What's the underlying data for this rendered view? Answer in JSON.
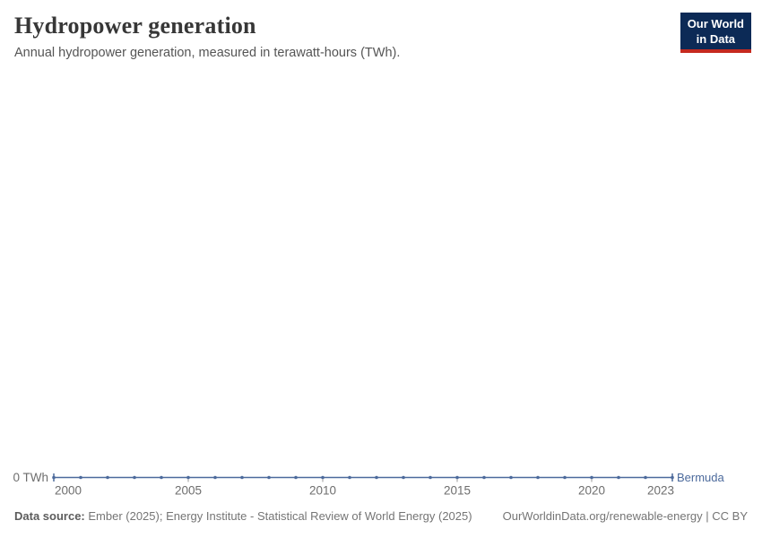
{
  "header": {
    "title": "Hydropower generation",
    "subtitle": "Annual hydropower generation, measured in terawatt-hours (TWh).",
    "logo": {
      "line1": "Our World",
      "line2": "in Data"
    }
  },
  "chart_data": {
    "type": "line",
    "title": "Hydropower generation",
    "subtitle": "Annual hydropower generation, measured in terawatt-hours (TWh).",
    "x": [
      2000,
      2001,
      2002,
      2003,
      2004,
      2005,
      2006,
      2007,
      2008,
      2009,
      2010,
      2011,
      2012,
      2013,
      2014,
      2015,
      2016,
      2017,
      2018,
      2019,
      2020,
      2021,
      2022,
      2023
    ],
    "series": [
      {
        "name": "Bermuda",
        "color": "#4c6a9c",
        "values": [
          0,
          0,
          0,
          0,
          0,
          0,
          0,
          0,
          0,
          0,
          0,
          0,
          0,
          0,
          0,
          0,
          0,
          0,
          0,
          0,
          0,
          0,
          0,
          0
        ]
      }
    ],
    "x_tick_labels": [
      "2000",
      "2005",
      "2010",
      "2015",
      "2020",
      "2023"
    ],
    "y_tick_labels": [
      "0 TWh"
    ],
    "xlabel": "",
    "ylabel": "",
    "xlim": [
      2000,
      2023
    ],
    "ylim": [
      0,
      0
    ],
    "grid": false,
    "legend_position": "right-of-line-end",
    "marker": "dot-every-year"
  },
  "footer": {
    "source_label": "Data source:",
    "source_text": " Ember (2025); Energy Institute - Statistical Review of World Energy (2025)",
    "attribution": "OurWorldinData.org/renewable-energy | CC BY"
  },
  "colors": {
    "series_blue": "#4c6a9c",
    "logo_bg": "#0c2a56",
    "logo_stripe": "#c52a1f",
    "axis_text": "#6e6e6e",
    "tick_mark": "#9a9a9a",
    "title_text": "#373737",
    "subtitle_text": "#555555",
    "footer_text": "#757575"
  }
}
